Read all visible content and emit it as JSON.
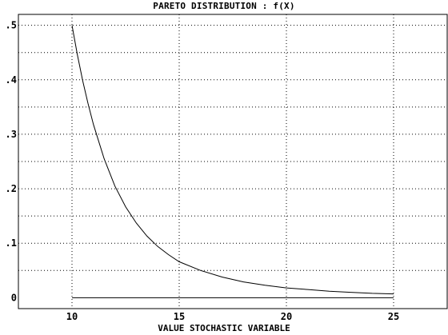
{
  "chart_data": {
    "type": "line",
    "title": "PARETO DISTRIBUTION : f(X)",
    "xlabel": "VALUE STOCHASTIC VARIABLE",
    "ylabel": "",
    "xlim": [
      7.5,
      27.5
    ],
    "ylim": [
      -0.02,
      0.52
    ],
    "x_ticks": [
      10,
      15,
      20,
      25
    ],
    "x_tick_labels": [
      "10",
      "15",
      "20",
      "25"
    ],
    "y_ticks": [
      0,
      0.1,
      0.2,
      0.3,
      0.4,
      0.5
    ],
    "y_tick_labels": [
      "0",
      ".1",
      ".2",
      ".3",
      ".4",
      ".5"
    ],
    "grid": true,
    "series": [
      {
        "color": "#000000",
        "x": [
          10,
          10.25,
          10.5,
          10.75,
          11,
          11.5,
          12,
          12.5,
          13,
          13.5,
          14,
          14.5,
          15,
          16,
          17,
          18,
          19,
          20,
          21,
          22,
          23,
          24,
          25
        ],
        "y": [
          0.5,
          0.446,
          0.398,
          0.356,
          0.318,
          0.255,
          0.205,
          0.167,
          0.137,
          0.113,
          0.094,
          0.079,
          0.066,
          0.05,
          0.038,
          0.029,
          0.023,
          0.018,
          0.015,
          0.012,
          0.01,
          0.008,
          0.007
        ]
      },
      {
        "color": "#000000",
        "x": [
          10,
          25
        ],
        "y": [
          0,
          0
        ]
      }
    ]
  }
}
